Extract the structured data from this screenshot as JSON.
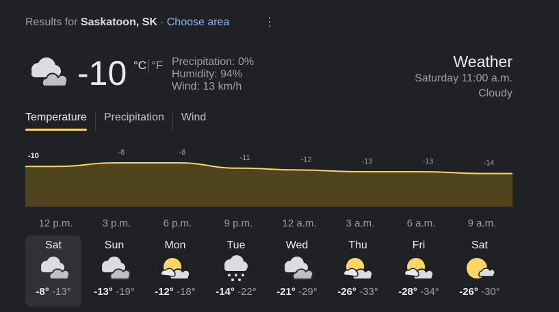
{
  "header": {
    "prefix": "Results for",
    "location": "Saskatoon, SK",
    "separator": "·",
    "choose": "Choose area",
    "more_icon": "more-vert-icon"
  },
  "current": {
    "temp": "-10",
    "unit_c": "°C",
    "unit_f": "°F",
    "precip": "Precipitation: 0%",
    "humidity": "Humidity: 94%",
    "wind": "Wind: 13 km/h",
    "icon": "cloudy-icon"
  },
  "summary": {
    "title": "Weather",
    "time": "Saturday 11:00 a.m.",
    "condition": "Cloudy"
  },
  "tabs": [
    "Temperature",
    "Precipitation",
    "Wind"
  ],
  "chart_data": {
    "type": "area",
    "x": [
      "12 p.m.",
      "3 p.m.",
      "6 p.m.",
      "9 p.m.",
      "12 a.m.",
      "3 a.m.",
      "6 a.m.",
      "9 a.m."
    ],
    "values": [
      -10,
      -8,
      -8,
      -11,
      -12,
      -13,
      -13,
      -14
    ],
    "labels": [
      "-10",
      "-8",
      "-8",
      "-11",
      "-12",
      "-13",
      "-13",
      "-14"
    ],
    "line_color": "#fdd663",
    "fill_color": "#4f441e",
    "grid": false
  },
  "days": [
    {
      "name": "Sat",
      "icon": "cloudy",
      "hi": "-8°",
      "lo": "-13°"
    },
    {
      "name": "Sun",
      "icon": "cloudy",
      "hi": "-13°",
      "lo": "-19°"
    },
    {
      "name": "Mon",
      "icon": "partly-cloudy",
      "hi": "-12°",
      "lo": "-18°"
    },
    {
      "name": "Tue",
      "icon": "snow",
      "hi": "-14°",
      "lo": "-22°"
    },
    {
      "name": "Wed",
      "icon": "cloudy",
      "hi": "-21°",
      "lo": "-29°"
    },
    {
      "name": "Thu",
      "icon": "partly-cloudy",
      "hi": "-26°",
      "lo": "-33°"
    },
    {
      "name": "Fri",
      "icon": "partly-cloudy",
      "hi": "-28°",
      "lo": "-34°"
    },
    {
      "name": "Sat",
      "icon": "mostly-sunny",
      "hi": "-26°",
      "lo": "-30°"
    }
  ]
}
